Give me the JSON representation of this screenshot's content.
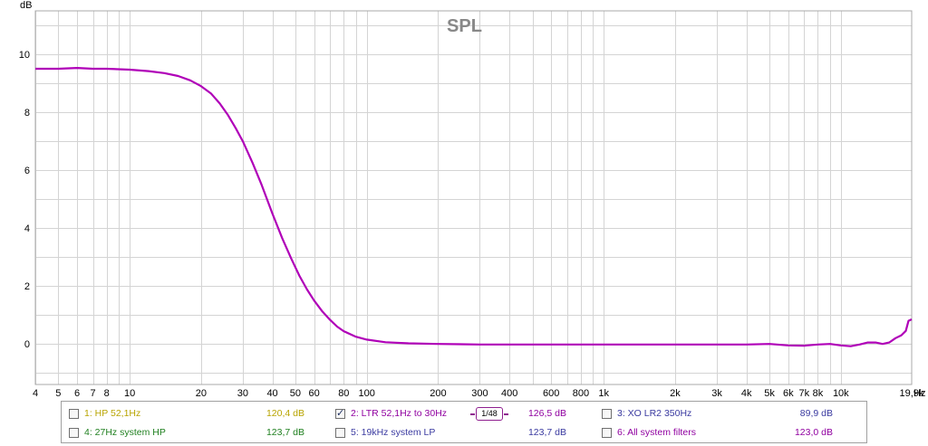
{
  "chart_data": {
    "type": "line",
    "title": "SPL",
    "ylabel": "dB",
    "xlabel": "Hz",
    "xscale": "log",
    "xlim": [
      4,
      19900
    ],
    "ylim": [
      -1.4,
      11.5
    ],
    "grid": true,
    "y_ticks": [
      0,
      2,
      4,
      6,
      8,
      10
    ],
    "y_tick_labels": [
      "0",
      "2",
      "4",
      "6",
      "8",
      "10"
    ],
    "x_ticks": [
      4,
      5,
      6,
      7,
      8,
      10,
      20,
      30,
      40,
      50,
      60,
      80,
      100,
      200,
      300,
      400,
      600,
      800,
      1000,
      2000,
      3000,
      4000,
      5000,
      6000,
      7000,
      8000,
      10000,
      19900
    ],
    "x_tick_labels": [
      "4",
      "5",
      "6",
      "7",
      "8",
      "10",
      "20",
      "30",
      "40",
      "50",
      "60",
      "80",
      "100",
      "200",
      "300",
      "400",
      "600",
      "800",
      "1k",
      "2k",
      "3k",
      "4k",
      "5k",
      "6k",
      "7k",
      "8k",
      "10k",
      "19,9k"
    ],
    "x_unit_label": "Hz",
    "series": [
      {
        "name": "2: LTR 52,1Hz to 30Hz",
        "color": "#b000b8",
        "x": [
          4,
          5,
          6,
          7,
          8,
          10,
          12,
          14,
          16,
          18,
          20,
          22,
          24,
          26,
          28,
          30,
          33,
          36,
          40,
          44,
          48,
          52,
          56,
          60,
          65,
          70,
          75,
          80,
          90,
          100,
          120,
          150,
          200,
          300,
          500,
          1000,
          2000,
          3000,
          4000,
          5000,
          6000,
          7000,
          8000,
          9000,
          10000,
          11000,
          12000,
          13000,
          14000,
          15000,
          16000,
          17000,
          18000,
          18800,
          19300,
          19900
        ],
        "y": [
          9.5,
          9.5,
          9.53,
          9.5,
          9.5,
          9.47,
          9.42,
          9.35,
          9.25,
          9.1,
          8.9,
          8.65,
          8.3,
          7.9,
          7.45,
          7.0,
          6.25,
          5.5,
          4.5,
          3.65,
          2.95,
          2.35,
          1.88,
          1.5,
          1.12,
          0.83,
          0.6,
          0.44,
          0.25,
          0.15,
          0.06,
          0.02,
          0.0,
          -0.02,
          -0.02,
          -0.02,
          -0.02,
          -0.02,
          -0.02,
          0.0,
          -0.05,
          -0.06,
          -0.02,
          0.0,
          -0.05,
          -0.08,
          -0.02,
          0.05,
          0.05,
          0.0,
          0.05,
          0.2,
          0.3,
          0.45,
          0.8,
          0.85
        ]
      }
    ]
  },
  "legend": [
    {
      "name": "1: HP 52,1Hz",
      "value": "120,4 dB",
      "color": "#b8a400",
      "checked": false
    },
    {
      "name": "2: LTR 52,1Hz to 30Hz",
      "value": "126,5 dB",
      "color": "#9000a0",
      "checked": true,
      "badge": "1/48"
    },
    {
      "name": "3: XO LR2 350Hz",
      "value": "89,9 dB",
      "color": "#3a3aa0",
      "checked": false
    },
    {
      "name": "4: 27Hz system HP",
      "value": "123,7 dB",
      "color": "#208020",
      "checked": false
    },
    {
      "name": "5: 19kHz system LP",
      "value": "123,7 dB",
      "color": "#3a3aa0",
      "checked": false
    },
    {
      "name": "6: All system filters",
      "value": "123,0 dB",
      "color": "#9000a0",
      "checked": false
    }
  ]
}
